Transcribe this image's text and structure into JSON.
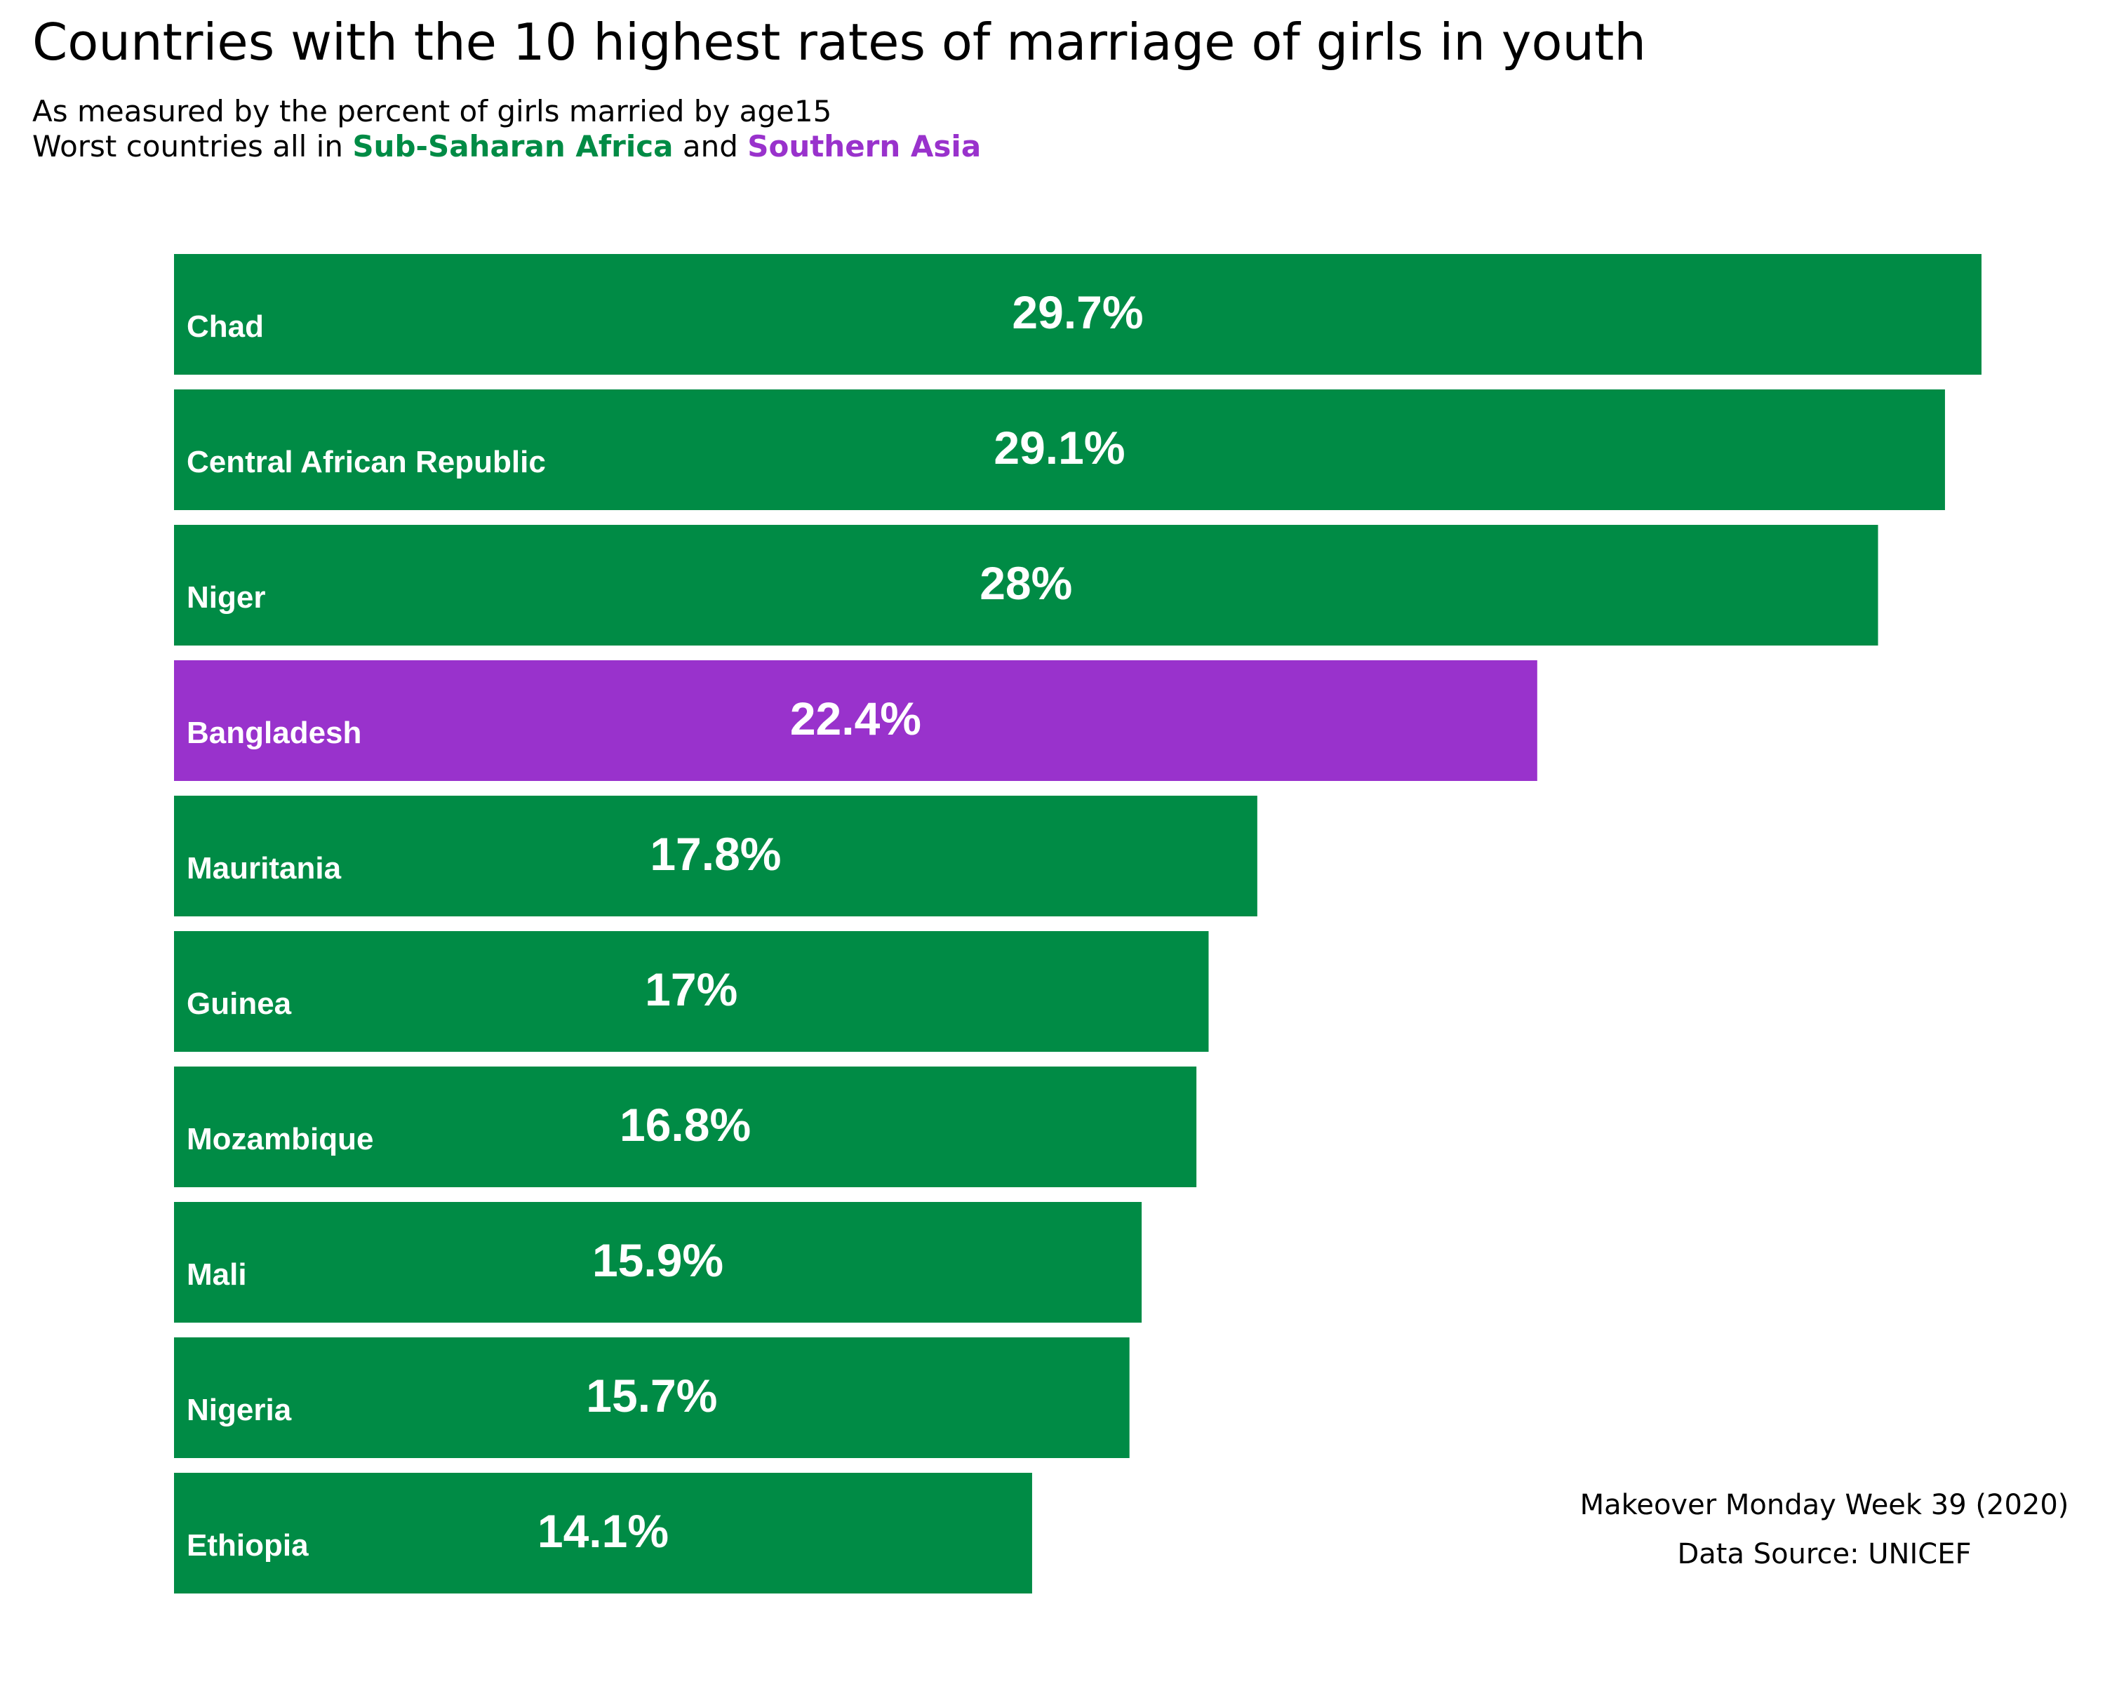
{
  "title": "Countries with the 10 highest rates of marriage of girls in youth",
  "subtitle": {
    "line1": "As measured by the percent of girls married by age15",
    "line2_prefix": "Worst countries all in ",
    "region_africa": "Sub-Saharan Africa",
    "connector": " and ",
    "region_asia": "Southern Asia"
  },
  "colors": {
    "africa": "#008b45",
    "asia": "#9932cc",
    "label": "#ffffff"
  },
  "caption": {
    "line1": "Makeover Monday Week 39 (2020)",
    "line2": "Data Source: UNICEF"
  },
  "chart_data": {
    "type": "bar",
    "orientation": "horizontal",
    "title": "Countries with the 10 highest rates of marriage of girls in youth",
    "xlim": [
      0,
      30
    ],
    "grid": false,
    "categories": [
      "Chad",
      "Central African Republic",
      "Niger",
      "Bangladesh",
      "Mauritania",
      "Guinea",
      "Mozambique",
      "Mali",
      "Nigeria",
      "Ethiopia"
    ],
    "values": [
      29.7,
      29.1,
      28,
      22.4,
      17.8,
      17,
      16.8,
      15.9,
      15.7,
      14.1
    ],
    "value_labels": [
      "29.7%",
      "29.1%",
      "28%",
      "22.4%",
      "17.8%",
      "17%",
      "16.8%",
      "15.9%",
      "15.7%",
      "14.1%"
    ],
    "regions": [
      "africa",
      "africa",
      "africa",
      "asia",
      "africa",
      "africa",
      "africa",
      "africa",
      "africa",
      "africa"
    ]
  }
}
